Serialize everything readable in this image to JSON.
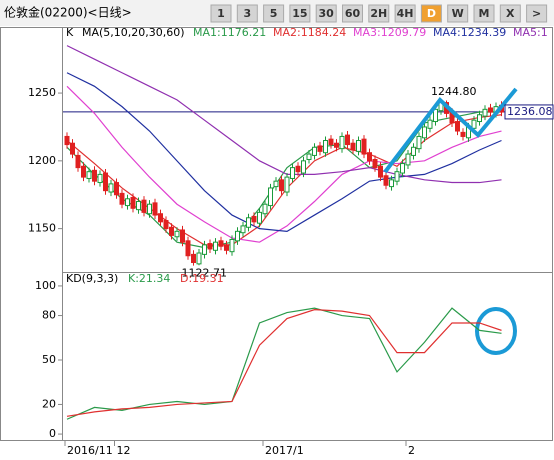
{
  "toolbar": {
    "title": "伦敦金(02200)<日线>",
    "buttons": [
      "1",
      "3",
      "5",
      "15",
      "30",
      "60",
      "2H",
      "4H",
      "D",
      "W",
      "M",
      "X",
      ">"
    ],
    "active": "D"
  },
  "chart_data": [
    {
      "type": "candlestick",
      "k_label": "K",
      "ma_label": "MA(5,10,20,30,60)",
      "ma_legend": [
        "MA1:1176.21",
        "MA2:1184.24",
        "MA3:1209.79",
        "MA4:1234.39",
        "MA5:1"
      ],
      "up_color": "#1a9a3a",
      "down_color": "#e02020",
      "open": [
        1218,
        1213,
        1204,
        1196,
        1187,
        1193,
        1184,
        1191,
        1177,
        1184,
        1176,
        1167,
        1173,
        1164,
        1171,
        1161,
        1169,
        1161,
        1156,
        1151,
        1144,
        1149,
        1141,
        1131,
        1124,
        1131,
        1139,
        1134,
        1141,
        1138,
        1133,
        1141,
        1147,
        1151,
        1159,
        1154,
        1161,
        1167,
        1181,
        1186,
        1177,
        1187,
        1196,
        1191,
        1201,
        1204,
        1211,
        1206,
        1216,
        1213,
        1209,
        1219,
        1213,
        1207,
        1216,
        1206,
        1201,
        1196,
        1189,
        1181,
        1185,
        1191,
        1197,
        1204,
        1209,
        1217,
        1224,
        1229,
        1237,
        1243,
        1236,
        1229,
        1221,
        1217,
        1224,
        1229,
        1233,
        1239,
        1235,
        1241
      ],
      "high": [
        1221,
        1216,
        1207,
        1199,
        1195,
        1196,
        1193,
        1194,
        1186,
        1187,
        1179,
        1175,
        1176,
        1173,
        1174,
        1171,
        1172,
        1164,
        1159,
        1154,
        1151,
        1152,
        1144,
        1134,
        1135,
        1141,
        1142,
        1143,
        1144,
        1141,
        1145,
        1151,
        1155,
        1161,
        1162,
        1165,
        1171,
        1183,
        1188,
        1189,
        1191,
        1198,
        1199,
        1203,
        1208,
        1213,
        1214,
        1218,
        1219,
        1216,
        1221,
        1222,
        1216,
        1218,
        1219,
        1209,
        1204,
        1199,
        1192,
        1189,
        1195,
        1201,
        1208,
        1213,
        1221,
        1228,
        1233,
        1241,
        1244.8,
        1244.5,
        1239,
        1232,
        1224,
        1228,
        1233,
        1237,
        1241,
        1242,
        1243,
        1244
      ],
      "low": [
        1209,
        1202,
        1192,
        1185,
        1184,
        1182,
        1181,
        1175,
        1174,
        1172,
        1165,
        1164,
        1162,
        1161,
        1159,
        1158,
        1157,
        1152,
        1147,
        1142,
        1141,
        1137,
        1127,
        1122.71,
        1123,
        1128,
        1132,
        1131,
        1134,
        1131,
        1130,
        1138,
        1144,
        1148,
        1152,
        1151,
        1158,
        1164,
        1178,
        1175,
        1174,
        1184,
        1189,
        1188,
        1198,
        1201,
        1204,
        1203,
        1209,
        1207,
        1206,
        1209,
        1205,
        1204,
        1202,
        1197,
        1192,
        1185,
        1179,
        1178,
        1182,
        1188,
        1194,
        1201,
        1206,
        1214,
        1221,
        1226,
        1234,
        1232,
        1225,
        1219,
        1215,
        1214,
        1221,
        1226,
        1230,
        1233,
        1232,
        1233
      ],
      "close": [
        1212,
        1205,
        1195,
        1188,
        1192,
        1185,
        1190,
        1178,
        1183,
        1175,
        1168,
        1172,
        1165,
        1170,
        1162,
        1168,
        1160,
        1155,
        1150,
        1145,
        1148,
        1140,
        1130,
        1125,
        1132,
        1138,
        1135,
        1140,
        1137,
        1134,
        1142,
        1148,
        1152,
        1158,
        1155,
        1162,
        1168,
        1180,
        1185,
        1178,
        1188,
        1195,
        1192,
        1200,
        1205,
        1210,
        1207,
        1215,
        1212,
        1210,
        1218,
        1212,
        1208,
        1215,
        1205,
        1200,
        1195,
        1188,
        1182,
        1186,
        1192,
        1198,
        1205,
        1210,
        1218,
        1225,
        1230,
        1238,
        1244,
        1235,
        1228,
        1222,
        1218,
        1225,
        1230,
        1234,
        1238,
        1236,
        1240,
        1236
      ],
      "ylim": [
        1118,
        1298
      ],
      "yticks": [
        1150,
        1200,
        1250
      ],
      "last_price": 1236.08,
      "last_price_color": "#1a1a80",
      "annotations": [
        {
          "value": 1244.8,
          "label": "1244.80",
          "index": 68
        },
        {
          "value": 1122.71,
          "label": "1122.71",
          "index": 23
        }
      ],
      "ma_x": [
        0,
        5,
        10,
        15,
        20,
        25,
        30,
        35,
        40,
        45,
        50,
        55,
        60,
        65,
        70,
        75,
        79
      ],
      "series": [
        {
          "name": "MA1",
          "color": "#2a9a4a",
          "values": [
            1210,
            1190,
            1172,
            1160,
            1140,
            1136,
            1140,
            1165,
            1195,
            1210,
            1212,
            1195,
            1200,
            1228,
            1232,
            1236,
            1236
          ]
        },
        {
          "name": "MA2",
          "color": "#e03030",
          "values": [
            1215,
            1198,
            1180,
            1165,
            1150,
            1138,
            1138,
            1152,
            1180,
            1200,
            1210,
            1205,
            1196,
            1215,
            1228,
            1232,
            1234
          ]
        },
        {
          "name": "MA3",
          "color": "#e040d0",
          "values": [
            1255,
            1235,
            1210,
            1188,
            1168,
            1155,
            1143,
            1140,
            1152,
            1170,
            1190,
            1200,
            1198,
            1200,
            1210,
            1218,
            1222
          ]
        },
        {
          "name": "MA4",
          "color": "#2030a0",
          "values": [
            1265,
            1255,
            1240,
            1222,
            1200,
            1178,
            1160,
            1150,
            1148,
            1160,
            1172,
            1185,
            1188,
            1190,
            1198,
            1208,
            1215
          ]
        },
        {
          "name": "MA5",
          "color": "#9030b0",
          "values": [
            1285,
            1275,
            1265,
            1255,
            1245,
            1230,
            1215,
            1200,
            1190,
            1190,
            1192,
            1195,
            1190,
            1186,
            1184,
            1184,
            1186
          ]
        }
      ],
      "x_labels": [
        {
          "value": 0,
          "label": "2016/11"
        },
        {
          "value": 9,
          "label": "12"
        },
        {
          "value": 36,
          "label": "2017/1"
        },
        {
          "value": 62,
          "label": "2"
        }
      ]
    },
    {
      "type": "line",
      "title": "KD(9,3,3)",
      "legend": [
        "K:21.34",
        "D:19.31"
      ],
      "x": [
        0,
        5,
        10,
        15,
        20,
        25,
        30,
        35,
        40,
        45,
        50,
        55,
        60,
        65,
        70,
        75,
        79
      ],
      "ylim": [
        -4,
        104
      ],
      "yticks": [
        0,
        20,
        50,
        80,
        100
      ],
      "series": [
        {
          "name": "K",
          "color": "#2a9a4a",
          "values": [
            10,
            18,
            16,
            20,
            22,
            20,
            22,
            75,
            82,
            85,
            80,
            78,
            42,
            62,
            85,
            70,
            68
          ]
        },
        {
          "name": "D",
          "color": "#e03030",
          "values": [
            12,
            15,
            17,
            18,
            20,
            21,
            22,
            60,
            78,
            84,
            83,
            80,
            55,
            55,
            75,
            75,
            70
          ]
        }
      ]
    }
  ]
}
